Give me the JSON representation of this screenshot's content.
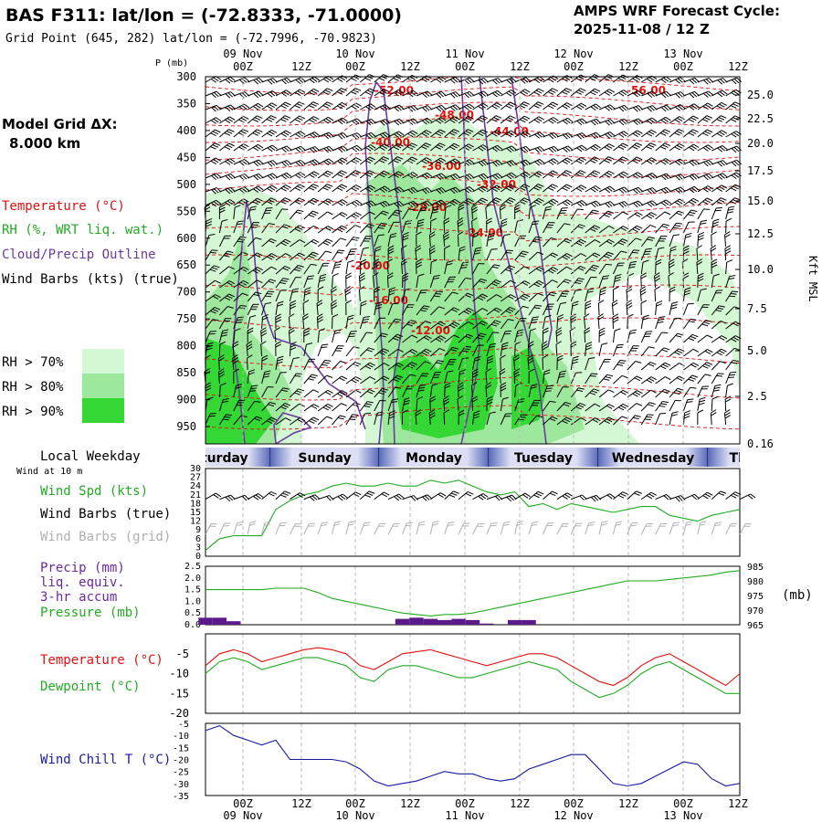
{
  "header": {
    "title": "BAS F311:  lat/lon = (-72.8333, -71.0000)",
    "grid_point": "Grid Point (645, 282) lat/lon = (-72.7996, -70.9823)",
    "cycle_label": "AMPS WRF Forecast Cycle:",
    "cycle_value": "2025-11-08 / 12  Z"
  },
  "model_grid": {
    "label": "Model Grid ΔX:",
    "value": "8.000 km"
  },
  "colors": {
    "temperature": "#e01010",
    "rh": "#22aa22",
    "cloud_outline": "#6a3aa0",
    "wind_barbs": "#000000",
    "wind_barbs_grid": "#b0b0b0",
    "precip": "#5a1a8a",
    "pressure": "#22aa22",
    "dewpoint": "#22aa22",
    "wind_chill": "#1a1aa0",
    "rh70": "#d4f7d4",
    "rh80": "#9ee89e",
    "rh90": "#34d734"
  },
  "panels": {
    "sounding": {
      "p_label": "P (mb)",
      "right_axis_label": "Kft MSL",
      "legend_temperature": "Temperature (°C)",
      "legend_rh": "RH (%, WRT liq. wat.)",
      "legend_cloud": "Cloud/Precip Outline",
      "legend_wind": "Wind Barbs (kts) (true)",
      "rh_keys": [
        "RH > 70%",
        "RH > 80%",
        "RH > 90%"
      ]
    },
    "weekday": {
      "label": "Local Weekday",
      "days": [
        "Saturday",
        "Sunday",
        "Monday",
        "Tuesday",
        "Wednesday",
        "Thursday"
      ]
    },
    "wind10": {
      "sublabel": "Wind at 10 m",
      "legend_speed": "Wind Spd (kts)",
      "legend_true": "Wind Barbs (true)",
      "legend_grid": "Wind Barbs (grid)"
    },
    "precip": {
      "legend_precip": "Precip (mm)",
      "legend_liq": "liq. equiv.",
      "legend_accum": "3-hr accum",
      "legend_pressure": "Pressure (mb)",
      "right_unit": "(mb)"
    },
    "temp": {
      "legend_temp": "Temperature (°C)",
      "legend_dew": "Dewpoint (°C)"
    },
    "chill": {
      "legend": "Wind Chill T (°C)"
    }
  },
  "chart_data": [
    {
      "type": "contour",
      "name": "sounding",
      "x_ticks": [
        "00Z",
        "12Z",
        "00Z",
        "12Z",
        "00Z",
        "12Z",
        "00Z",
        "12Z",
        "00Z",
        "12Z"
      ],
      "date_labels": [
        "09 Nov",
        "10 Nov",
        "11 Nov",
        "12 Nov",
        "13 Nov"
      ],
      "pressure_ticks": [
        300,
        350,
        400,
        450,
        500,
        550,
        600,
        650,
        700,
        750,
        800,
        850,
        900,
        950
      ],
      "height_ticks": [
        "25.0",
        "22.5",
        "20.0",
        "17.5",
        "15.0",
        "12.5",
        "10.0",
        "7.5",
        "5.0",
        "2.5",
        "0.16"
      ],
      "temperature_labels": [
        "-52.00",
        "-56.00",
        "-48.00",
        "-44.00",
        "-40.00",
        "-36.00",
        "-32.00",
        "-28.00",
        "-24.00",
        "-20.00",
        "-16.00",
        "-12.00"
      ]
    },
    {
      "type": "line",
      "name": "wind_speed_10m",
      "ylim": [
        0,
        30
      ],
      "y_ticks": [
        0,
        3,
        6,
        9,
        12,
        15,
        18,
        21,
        24,
        27,
        30
      ],
      "values": [
        2,
        6,
        7,
        7,
        7,
        16,
        19,
        21,
        22,
        24,
        25,
        24,
        24,
        25,
        24,
        24,
        26,
        25,
        26,
        24,
        22,
        21,
        22,
        17,
        18,
        16,
        18,
        17,
        16,
        15,
        16,
        17,
        17,
        14,
        13,
        12,
        14,
        15,
        16
      ]
    },
    {
      "type": "bar+line",
      "name": "precip_pressure",
      "precip_ylim": [
        0,
        2.5
      ],
      "precip_ticks": [
        "0.0",
        "0.5",
        "1.0",
        "1.5",
        "2.0",
        "2.5"
      ],
      "pressure_ylim": [
        965,
        985
      ],
      "pressure_ticks": [
        965,
        970,
        975,
        980,
        985
      ],
      "precip_values": [
        0.3,
        0.3,
        0.15,
        0,
        0,
        0,
        0,
        0,
        0,
        0,
        0,
        0,
        0,
        0,
        0.25,
        0.3,
        0.25,
        0.2,
        0.25,
        0.2,
        0.05,
        0,
        0.2,
        0.2,
        0,
        0,
        0,
        0,
        0,
        0,
        0,
        0,
        0,
        0,
        0,
        0,
        0,
        0,
        0
      ],
      "pressure_values": [
        977,
        977,
        977,
        977,
        977,
        977.5,
        977.5,
        977.5,
        976,
        974,
        973,
        972,
        971,
        970,
        969,
        968.5,
        968,
        968.5,
        968.5,
        969,
        970,
        971,
        972,
        973,
        974,
        975,
        976,
        977,
        978,
        979,
        980,
        980,
        980,
        980.5,
        981,
        981.5,
        982,
        983,
        983.5
      ]
    },
    {
      "type": "line",
      "name": "temp_dewpoint",
      "ylim": [
        -20,
        0
      ],
      "y_ticks": [
        -5,
        -10,
        -15,
        -20
      ],
      "series": [
        {
          "name": "Temperature",
          "values": [
            -8,
            -5,
            -4,
            -5,
            -7,
            -6,
            -5,
            -4,
            -3.5,
            -4,
            -5,
            -8,
            -9,
            -7,
            -5,
            -4.5,
            -4,
            -5,
            -6,
            -7,
            -8,
            -7,
            -6,
            -5,
            -5,
            -6,
            -8,
            -10,
            -12,
            -13,
            -11,
            -8,
            -6,
            -5,
            -7,
            -9,
            -11,
            -13,
            -10
          ]
        },
        {
          "name": "Dewpoint",
          "values": [
            -10,
            -7,
            -6,
            -7,
            -9,
            -8,
            -7,
            -6,
            -6,
            -7,
            -8,
            -11,
            -12,
            -9,
            -8,
            -8,
            -9,
            -10,
            -11,
            -11,
            -10,
            -9,
            -8,
            -7,
            -8,
            -9,
            -12,
            -14,
            -16,
            -15,
            -13,
            -10,
            -8,
            -7,
            -9,
            -11,
            -13,
            -15,
            -15
          ]
        }
      ]
    },
    {
      "type": "line",
      "name": "wind_chill",
      "ylim": [
        -35,
        -5
      ],
      "y_ticks": [
        -5,
        -10,
        -15,
        -20,
        -25,
        -30,
        -35
      ],
      "values": [
        -8,
        -6,
        -10,
        -12,
        -14,
        -12,
        -20,
        -20,
        -20,
        -20,
        -21,
        -24,
        -29,
        -31,
        -30,
        -29,
        -27,
        -25,
        -26,
        -26,
        -28,
        -29,
        -28,
        -24,
        -22,
        -20,
        -18,
        -18,
        -24,
        -30,
        -31,
        -30,
        -27,
        -24,
        -21,
        -22,
        -28,
        -31,
        -30
      ]
    }
  ]
}
